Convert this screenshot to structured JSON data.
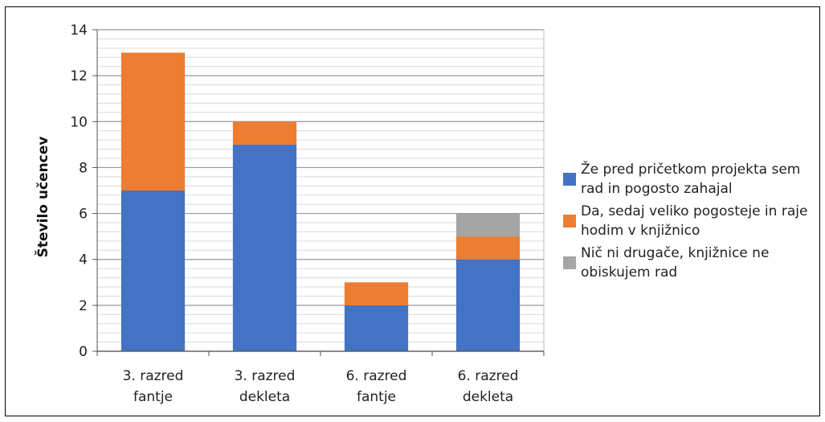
{
  "chart_data": {
    "type": "bar",
    "stacked": true,
    "categories": [
      "3. razred fantje",
      "3. razred dekleta",
      "6. razred fantje",
      "6. razred dekleta"
    ],
    "category_lines": [
      [
        "3. razred",
        "fantje"
      ],
      [
        "3. razred",
        "dekleta"
      ],
      [
        "6. razred",
        "fantje"
      ],
      [
        "6. razred",
        "dekleta"
      ]
    ],
    "series": [
      {
        "name": "Že pred pričetkom projekta sem rad in pogosto zahajal",
        "color": "#4472C4",
        "values": [
          7,
          9,
          2,
          4
        ]
      },
      {
        "name": "Da, sedaj veliko pogosteje in raje hodim v knjižnico",
        "color": "#ED7D31",
        "values": [
          6,
          1,
          1,
          1
        ]
      },
      {
        "name": "Nič ni drugače, knjižnice ne obiskujem rad",
        "color": "#A5A5A5",
        "values": [
          0,
          0,
          0,
          1
        ]
      }
    ],
    "ylabel": "Število učencev",
    "xlabel": "",
    "ylim": [
      0,
      14
    ],
    "yticks": [
      0,
      2,
      4,
      6,
      8,
      10,
      12,
      14
    ],
    "grid": true,
    "legend_position": "right"
  }
}
